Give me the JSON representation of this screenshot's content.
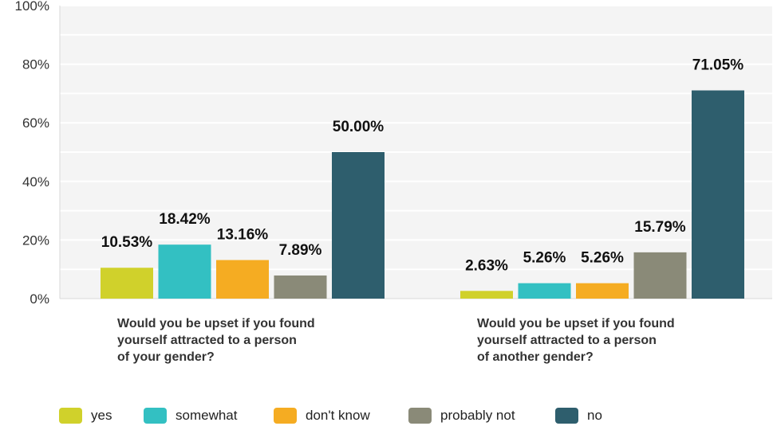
{
  "chart_data": {
    "type": "bar",
    "categories": [
      [
        "Would you be upset if you found",
        "yourself attracted to a person",
        "of your gender?"
      ],
      [
        "Would you be upset if you found",
        "yourself attracted to a person",
        "of another gender?"
      ]
    ],
    "series": [
      {
        "name": "yes",
        "color": "#d0d12b",
        "values": [
          10.53,
          2.63
        ],
        "labels": [
          "10.53%",
          "2.63%"
        ]
      },
      {
        "name": "somewhat",
        "color": "#33c0c2",
        "values": [
          18.42,
          5.26
        ],
        "labels": [
          "18.42%",
          "5.26%"
        ]
      },
      {
        "name": "don't know",
        "color": "#f5ac22",
        "values": [
          13.16,
          5.26
        ],
        "labels": [
          "13.16%",
          "5.26%"
        ]
      },
      {
        "name": "probably not",
        "color": "#8a8a78",
        "values": [
          7.89,
          15.79
        ],
        "labels": [
          "7.89%",
          "15.79%"
        ]
      },
      {
        "name": "no",
        "color": "#2e5e6d",
        "values": [
          50.0,
          71.05
        ],
        "labels": [
          "50.00%",
          "71.05%"
        ]
      }
    ],
    "yticks": [
      "0%",
      "20%",
      "40%",
      "60%",
      "80%",
      "100%"
    ],
    "ylim": [
      0,
      100
    ],
    "grid": true,
    "legend_position": "bottom"
  }
}
